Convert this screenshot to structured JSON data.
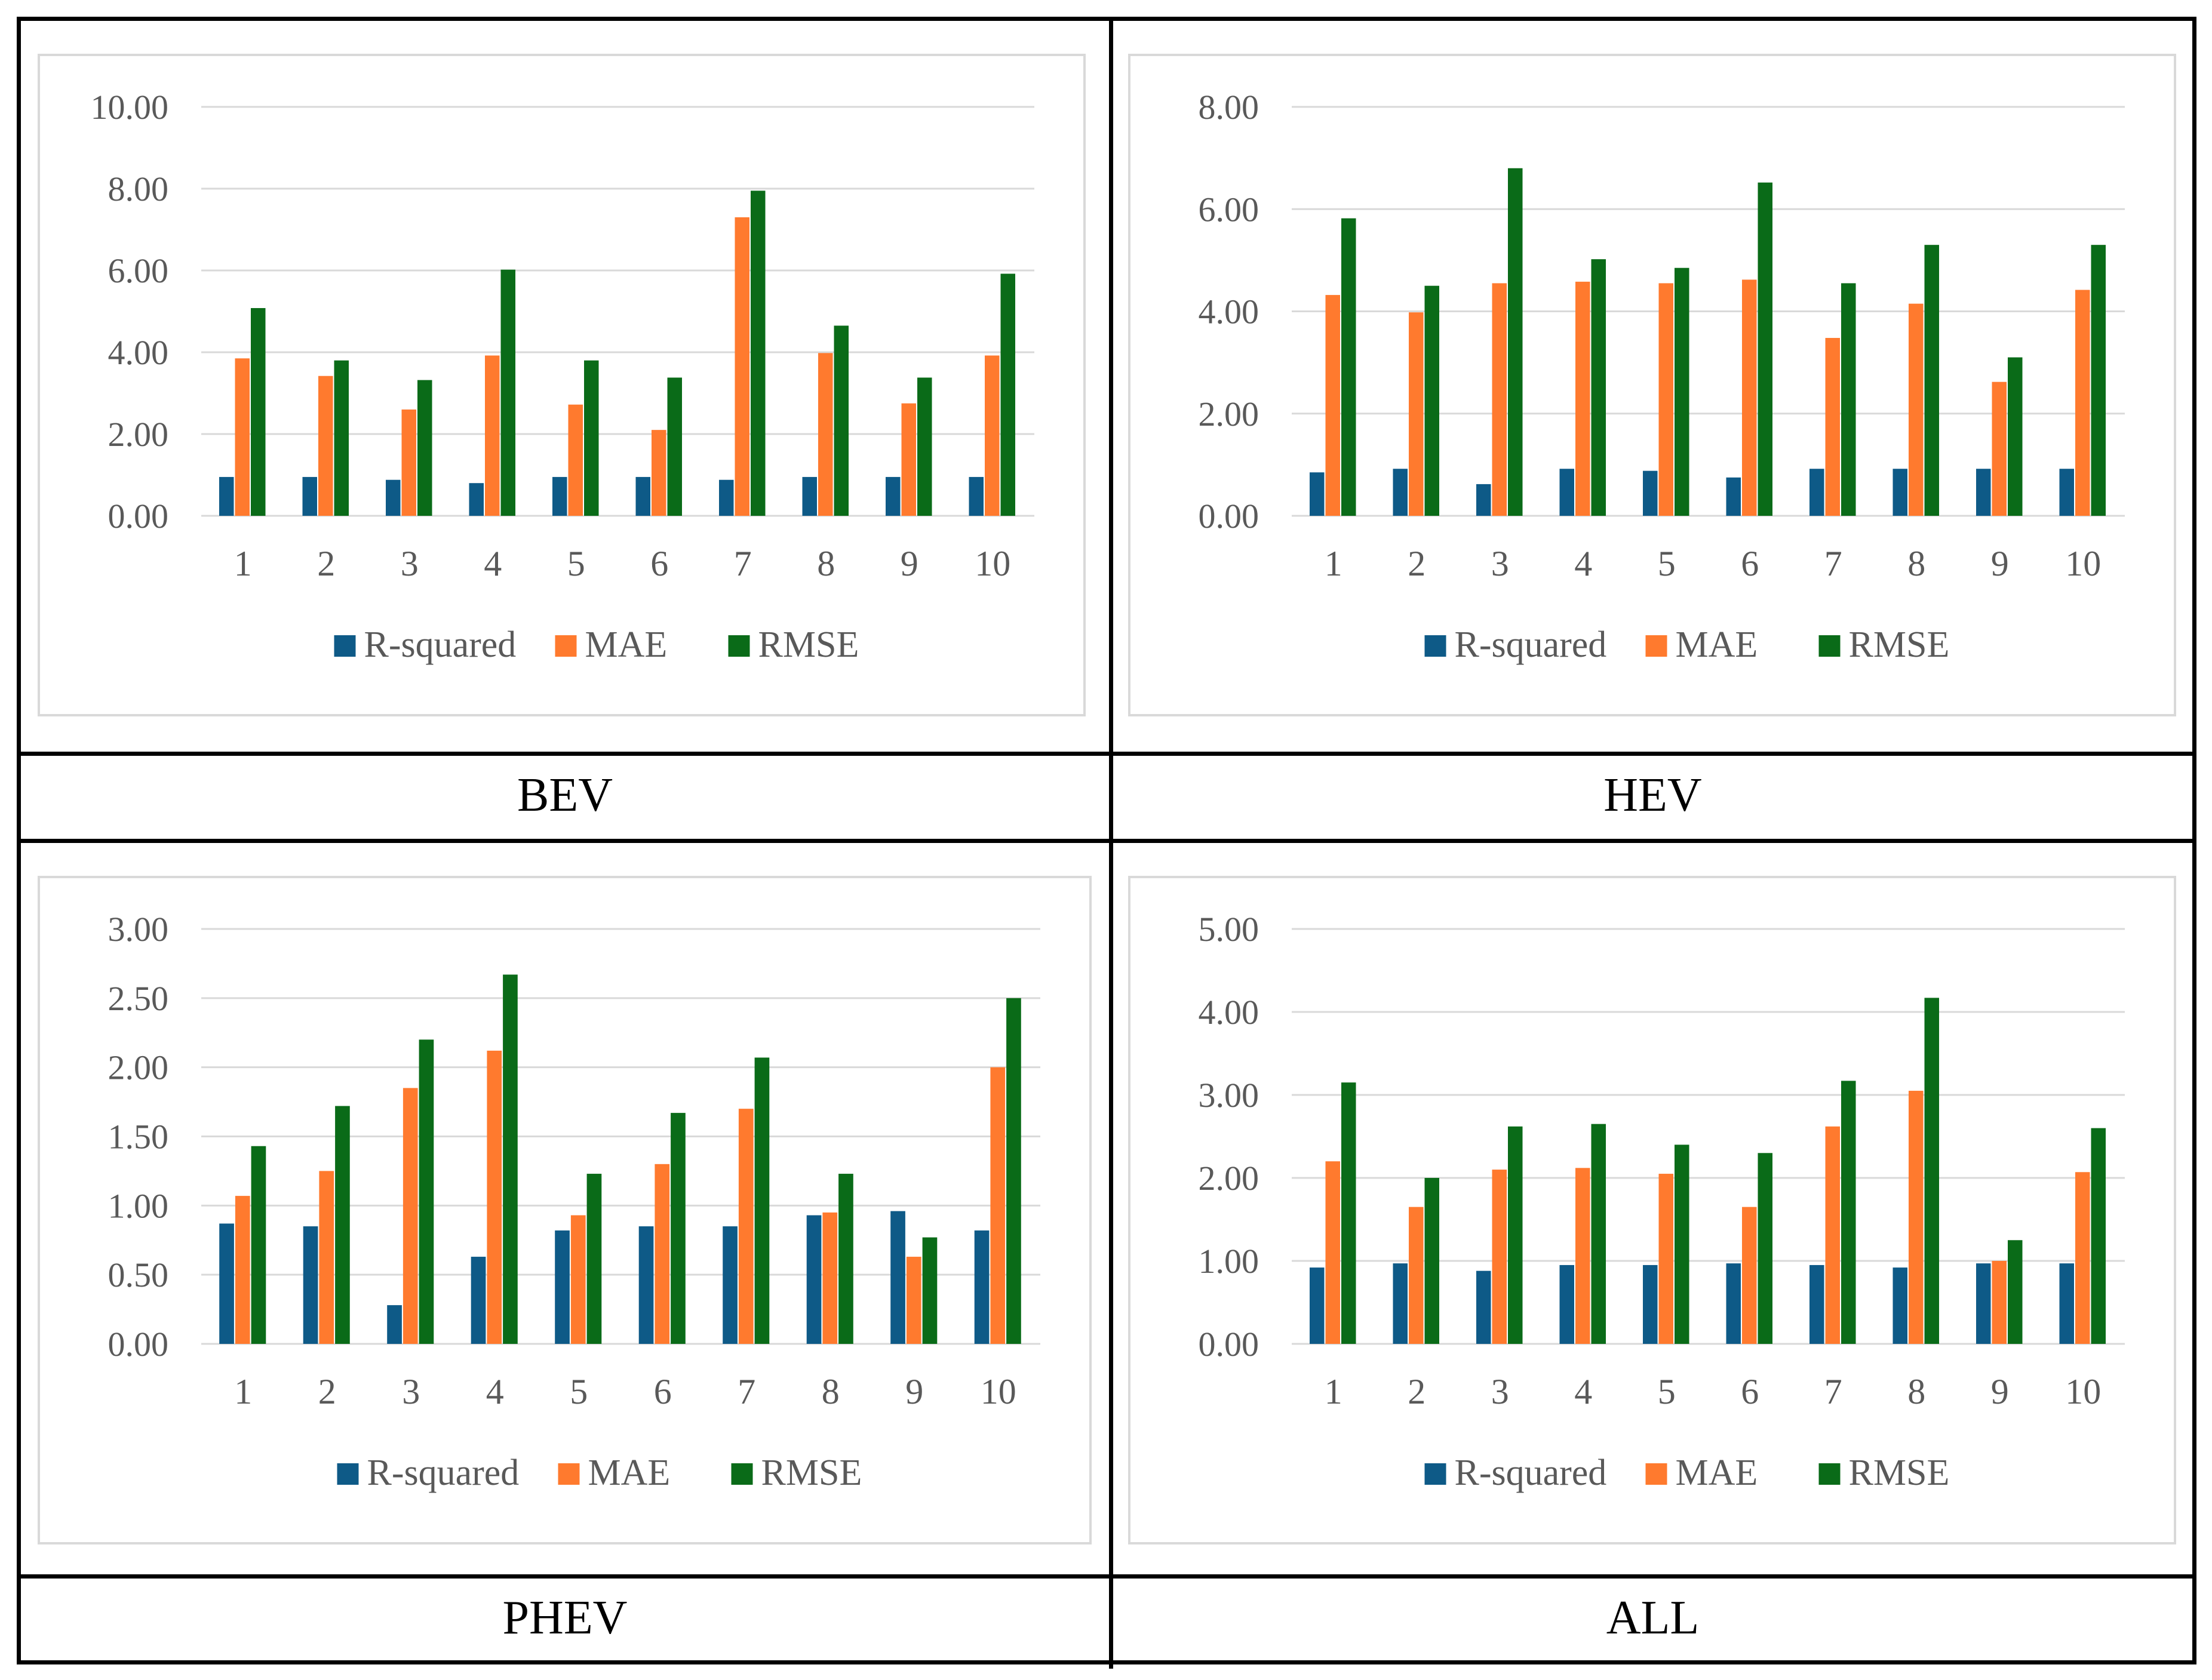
{
  "colors": {
    "R-squared": "#0e5a87",
    "MAE": "#ff7a2e",
    "RMSE": "#0a6b18",
    "gridline": "#d9d9d9",
    "tick_text": "#595959"
  },
  "chart_data": [
    {
      "caption": "BEV",
      "type": "bar",
      "categories": [
        "1",
        "2",
        "3",
        "4",
        "5",
        "6",
        "7",
        "8",
        "9",
        "10"
      ],
      "ylim": [
        0,
        10
      ],
      "yticks": [
        "0.00",
        "2.00",
        "4.00",
        "6.00",
        "8.00",
        "10.00"
      ],
      "legend": "bottom",
      "grid": true,
      "series": [
        {
          "name": "R-squared",
          "values": [
            0.95,
            0.95,
            0.88,
            0.8,
            0.95,
            0.95,
            0.88,
            0.95,
            0.95,
            0.95
          ]
        },
        {
          "name": "MAE",
          "values": [
            3.85,
            3.42,
            2.6,
            3.92,
            2.72,
            2.1,
            7.3,
            3.98,
            2.75,
            3.92
          ]
        },
        {
          "name": "RMSE",
          "values": [
            5.08,
            3.8,
            3.32,
            6.02,
            3.8,
            3.38,
            7.95,
            4.65,
            3.38,
            5.92
          ]
        }
      ]
    },
    {
      "caption": "HEV",
      "type": "bar",
      "categories": [
        "1",
        "2",
        "3",
        "4",
        "5",
        "6",
        "7",
        "8",
        "9",
        "10"
      ],
      "ylim": [
        0,
        8
      ],
      "yticks": [
        "0.00",
        "2.00",
        "4.00",
        "6.00",
        "8.00"
      ],
      "legend": "bottom",
      "grid": true,
      "series": [
        {
          "name": "R-squared",
          "values": [
            0.85,
            0.92,
            0.62,
            0.92,
            0.88,
            0.75,
            0.92,
            0.92,
            0.92,
            0.92
          ]
        },
        {
          "name": "MAE",
          "values": [
            4.32,
            3.98,
            4.55,
            4.58,
            4.55,
            4.62,
            3.48,
            4.15,
            2.62,
            4.42
          ]
        },
        {
          "name": "RMSE",
          "values": [
            5.82,
            4.5,
            6.8,
            5.02,
            4.85,
            6.52,
            4.55,
            5.3,
            3.1,
            5.3
          ]
        }
      ]
    },
    {
      "caption": "PHEV",
      "type": "bar",
      "categories": [
        "1",
        "2",
        "3",
        "4",
        "5",
        "6",
        "7",
        "8",
        "9",
        "10"
      ],
      "ylim": [
        0,
        3
      ],
      "yticks": [
        "0.00",
        "0.50",
        "1.00",
        "1.50",
        "2.00",
        "2.50",
        "3.00"
      ],
      "legend": "bottom",
      "grid": true,
      "series": [
        {
          "name": "R-squared",
          "values": [
            0.87,
            0.85,
            0.28,
            0.63,
            0.82,
            0.85,
            0.85,
            0.93,
            0.96,
            0.82
          ]
        },
        {
          "name": "MAE",
          "values": [
            1.07,
            1.25,
            1.85,
            2.12,
            0.93,
            1.3,
            1.7,
            0.95,
            0.63,
            2.0
          ]
        },
        {
          "name": "RMSE",
          "values": [
            1.43,
            1.72,
            2.2,
            2.67,
            1.23,
            1.67,
            2.07,
            1.23,
            0.77,
            2.5
          ]
        }
      ]
    },
    {
      "caption": "ALL",
      "type": "bar",
      "categories": [
        "1",
        "2",
        "3",
        "4",
        "5",
        "6",
        "7",
        "8",
        "9",
        "10"
      ],
      "ylim": [
        0,
        5
      ],
      "yticks": [
        "0.00",
        "1.00",
        "2.00",
        "3.00",
        "4.00",
        "5.00"
      ],
      "legend": "bottom",
      "grid": true,
      "series": [
        {
          "name": "R-squared",
          "values": [
            0.92,
            0.97,
            0.88,
            0.95,
            0.95,
            0.97,
            0.95,
            0.92,
            0.97,
            0.97
          ]
        },
        {
          "name": "MAE",
          "values": [
            2.2,
            1.65,
            2.1,
            2.12,
            2.05,
            1.65,
            2.62,
            3.05,
            1.0,
            2.07
          ]
        },
        {
          "name": "RMSE",
          "values": [
            3.15,
            2.0,
            2.62,
            2.65,
            2.4,
            2.3,
            3.17,
            4.17,
            1.25,
            2.6
          ]
        }
      ]
    }
  ]
}
